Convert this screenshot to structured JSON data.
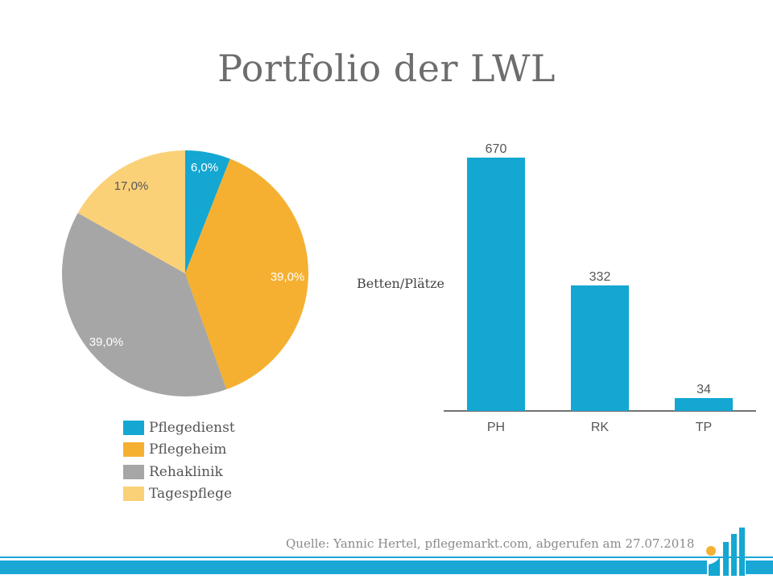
{
  "title": "Portfolio der LWL",
  "colors": {
    "Pflegedienst": "#13a7d2",
    "Pflegeheim": "#f5b031",
    "Rehaklinik": "#a6a6a6",
    "Tagespflege": "#fbd178",
    "bar": "#13a7d2",
    "footer": "#1ba7d6"
  },
  "chart_data": [
    {
      "type": "pie",
      "slices": [
        {
          "name": "Pflegedienst",
          "value": 6.0,
          "label": "6,0%"
        },
        {
          "name": "Pflegeheim",
          "value": 39.0,
          "label": "39,0%"
        },
        {
          "name": "Rehaklinik",
          "value": 39.0,
          "label": "39,0%"
        },
        {
          "name": "Tagespflege",
          "value": 17.0,
          "label": "17,0%"
        }
      ],
      "legend": [
        "Pflegedienst",
        "Pflegeheim",
        "Rehaklinik",
        "Tagespflege"
      ],
      "legend_placement": "bottom"
    },
    {
      "type": "bar",
      "categories": [
        "PH",
        "RK",
        "TP"
      ],
      "values": [
        670,
        332,
        34
      ],
      "value_labels": [
        "670",
        "332",
        "34"
      ],
      "ylabel": "Betten/Plätze",
      "ylim": [
        0,
        670
      ],
      "grid": false
    }
  ],
  "footer": {
    "source": "Quelle: Yannic Hertel, pflegemarkt.com, abgerufen am 27.07.2018",
    "logo_icon": "pflegemarkt-logo-icon"
  }
}
